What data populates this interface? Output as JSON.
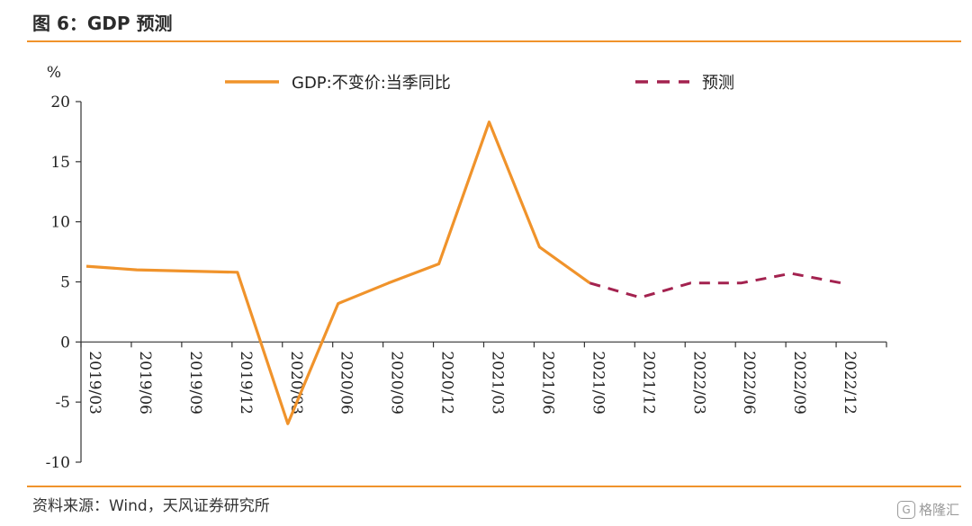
{
  "header": {
    "title": "图 6：GDP 预测"
  },
  "footer": {
    "source": "资料来源：Wind，天风证券研究所",
    "watermark": "格隆汇"
  },
  "chart_data": {
    "type": "line",
    "ylabel": "%",
    "ylim": [
      -10,
      20
    ],
    "yticks": [
      -10,
      -5,
      0,
      5,
      10,
      15,
      20
    ],
    "categories": [
      "2019/03",
      "2019/06",
      "2019/09",
      "2019/12",
      "2020/03",
      "2020/06",
      "2020/09",
      "2020/12",
      "2021/03",
      "2021/06",
      "2021/09",
      "2021/12",
      "2022/03",
      "2022/06",
      "2022/09",
      "2022/12"
    ],
    "legend_position": "top",
    "series": [
      {
        "name": "GDP:不变价:当季同比",
        "style": "solid",
        "color": "#f0932b",
        "values": [
          6.3,
          6.0,
          5.9,
          5.8,
          -6.8,
          3.2,
          4.9,
          6.5,
          18.3,
          7.9,
          4.9,
          null,
          null,
          null,
          null,
          null
        ]
      },
      {
        "name": "预测",
        "style": "dashed",
        "color": "#a3224f",
        "values": [
          null,
          null,
          null,
          null,
          null,
          null,
          null,
          null,
          null,
          null,
          4.9,
          3.7,
          4.9,
          4.9,
          5.7,
          4.9
        ]
      }
    ]
  }
}
